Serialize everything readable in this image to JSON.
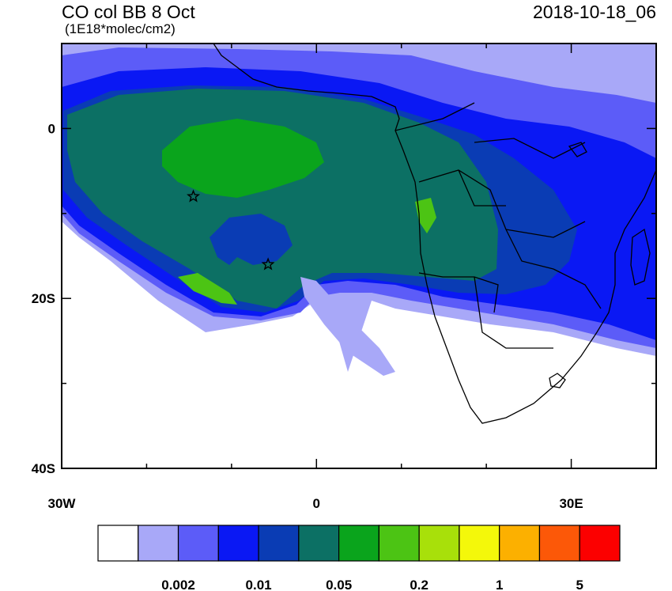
{
  "title": "CO col BB 8 Oct",
  "units": "(1E18*molec/cm2)",
  "datetime": "2018-10-18_06",
  "axes": {
    "x_ticks": [
      {
        "value": -30,
        "label": "30W"
      },
      {
        "value": 0,
        "label": "0"
      },
      {
        "value": 30,
        "label": "30E"
      }
    ],
    "y_ticks": [
      {
        "value": 0,
        "label": "0"
      },
      {
        "value": -20,
        "label": "20S"
      },
      {
        "value": -40,
        "label": "40S"
      }
    ],
    "x_range": [
      -30,
      40
    ],
    "y_range": [
      -40,
      10
    ]
  },
  "markers": [
    {
      "name": "star-marker-1",
      "lon": -14.5,
      "lat": -8
    },
    {
      "name": "star-marker-2",
      "lon": -5.7,
      "lat": -16
    }
  ],
  "colorbar": {
    "colors": [
      "#ffffff",
      "#a8a8f8",
      "#5c5cf8",
      "#0a18f4",
      "#0a3cb4",
      "#0c7064",
      "#0aa41c",
      "#4cc414",
      "#a8e00a",
      "#f4f80a",
      "#fcb000",
      "#fc5808",
      "#fc0000"
    ],
    "labels": [
      "0.002",
      "0.01",
      "0.05",
      "0.2",
      "1",
      "5"
    ]
  }
}
